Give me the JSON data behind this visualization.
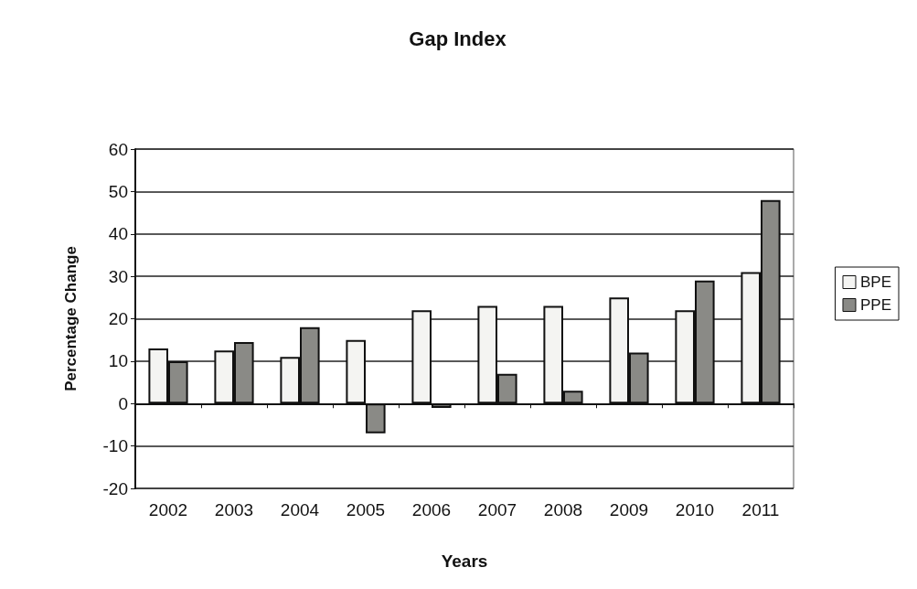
{
  "chart_data": {
    "type": "bar",
    "title": "Gap Index",
    "xlabel": "Years",
    "ylabel": "Percentage Change",
    "categories": [
      "2002",
      "2003",
      "2004",
      "2005",
      "2006",
      "2007",
      "2008",
      "2009",
      "2010",
      "2011"
    ],
    "series": [
      {
        "name": "BPE",
        "color": "#f4f4f2",
        "values": [
          13,
          12.5,
          11,
          15,
          22,
          23,
          23,
          25,
          22,
          31
        ]
      },
      {
        "name": "PPE",
        "color": "#8a8a86",
        "values": [
          10,
          14.5,
          18,
          -7,
          -1,
          7,
          3,
          12,
          29,
          48
        ]
      }
    ],
    "ylim": [
      -20,
      60
    ],
    "yticks": [
      -20,
      -10,
      0,
      10,
      20,
      30,
      40,
      50,
      60
    ],
    "grid": "y",
    "legend": "right"
  }
}
